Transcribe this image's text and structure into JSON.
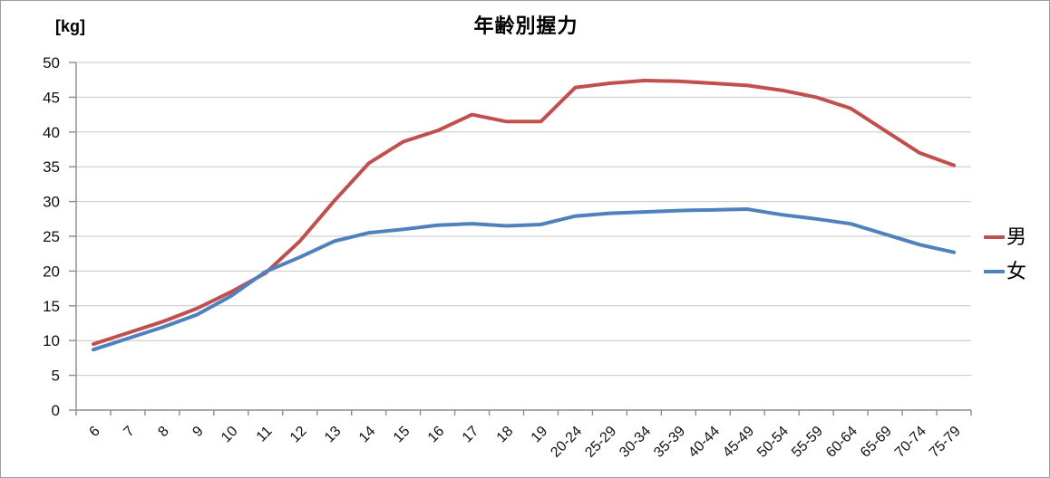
{
  "chart_data": {
    "type": "line",
    "title": "年齢別握力",
    "ylabel": "[kg]",
    "xlabel": "",
    "categories": [
      "6",
      "7",
      "8",
      "9",
      "10",
      "11",
      "12",
      "13",
      "14",
      "15",
      "16",
      "17",
      "18",
      "19",
      "20-24",
      "25-29",
      "30-34",
      "35-39",
      "40-44",
      "45-49",
      "50-54",
      "55-59",
      "60-64",
      "65-69",
      "70-74",
      "75-79"
    ],
    "series": [
      {
        "name": "男",
        "key": "male",
        "color": "#C0504D",
        "values": [
          9.5,
          11.1,
          12.7,
          14.6,
          17.0,
          19.7,
          24.3,
          30.1,
          35.5,
          38.6,
          40.2,
          42.5,
          41.5,
          41.5,
          46.4,
          47.0,
          47.4,
          47.3,
          47.0,
          46.7,
          46.0,
          45.0,
          43.4,
          40.2,
          37.0,
          35.2
        ]
      },
      {
        "name": "女",
        "key": "female",
        "color": "#4F81BD",
        "values": [
          8.7,
          10.3,
          11.9,
          13.7,
          16.4,
          19.9,
          22.0,
          24.3,
          25.5,
          26.0,
          26.6,
          26.8,
          26.5,
          26.7,
          27.9,
          28.3,
          28.5,
          28.7,
          28.8,
          28.9,
          28.1,
          27.5,
          26.8,
          25.3,
          23.8,
          22.7
        ]
      }
    ],
    "ylim": [
      0,
      50
    ],
    "ytick_step": 5,
    "grid": true,
    "legend_position": "right",
    "x_label_rotation": -45
  },
  "colors": {
    "gridline": "#c6c6c6",
    "axis": "#8c8c8c",
    "tick_text": "#111111"
  }
}
